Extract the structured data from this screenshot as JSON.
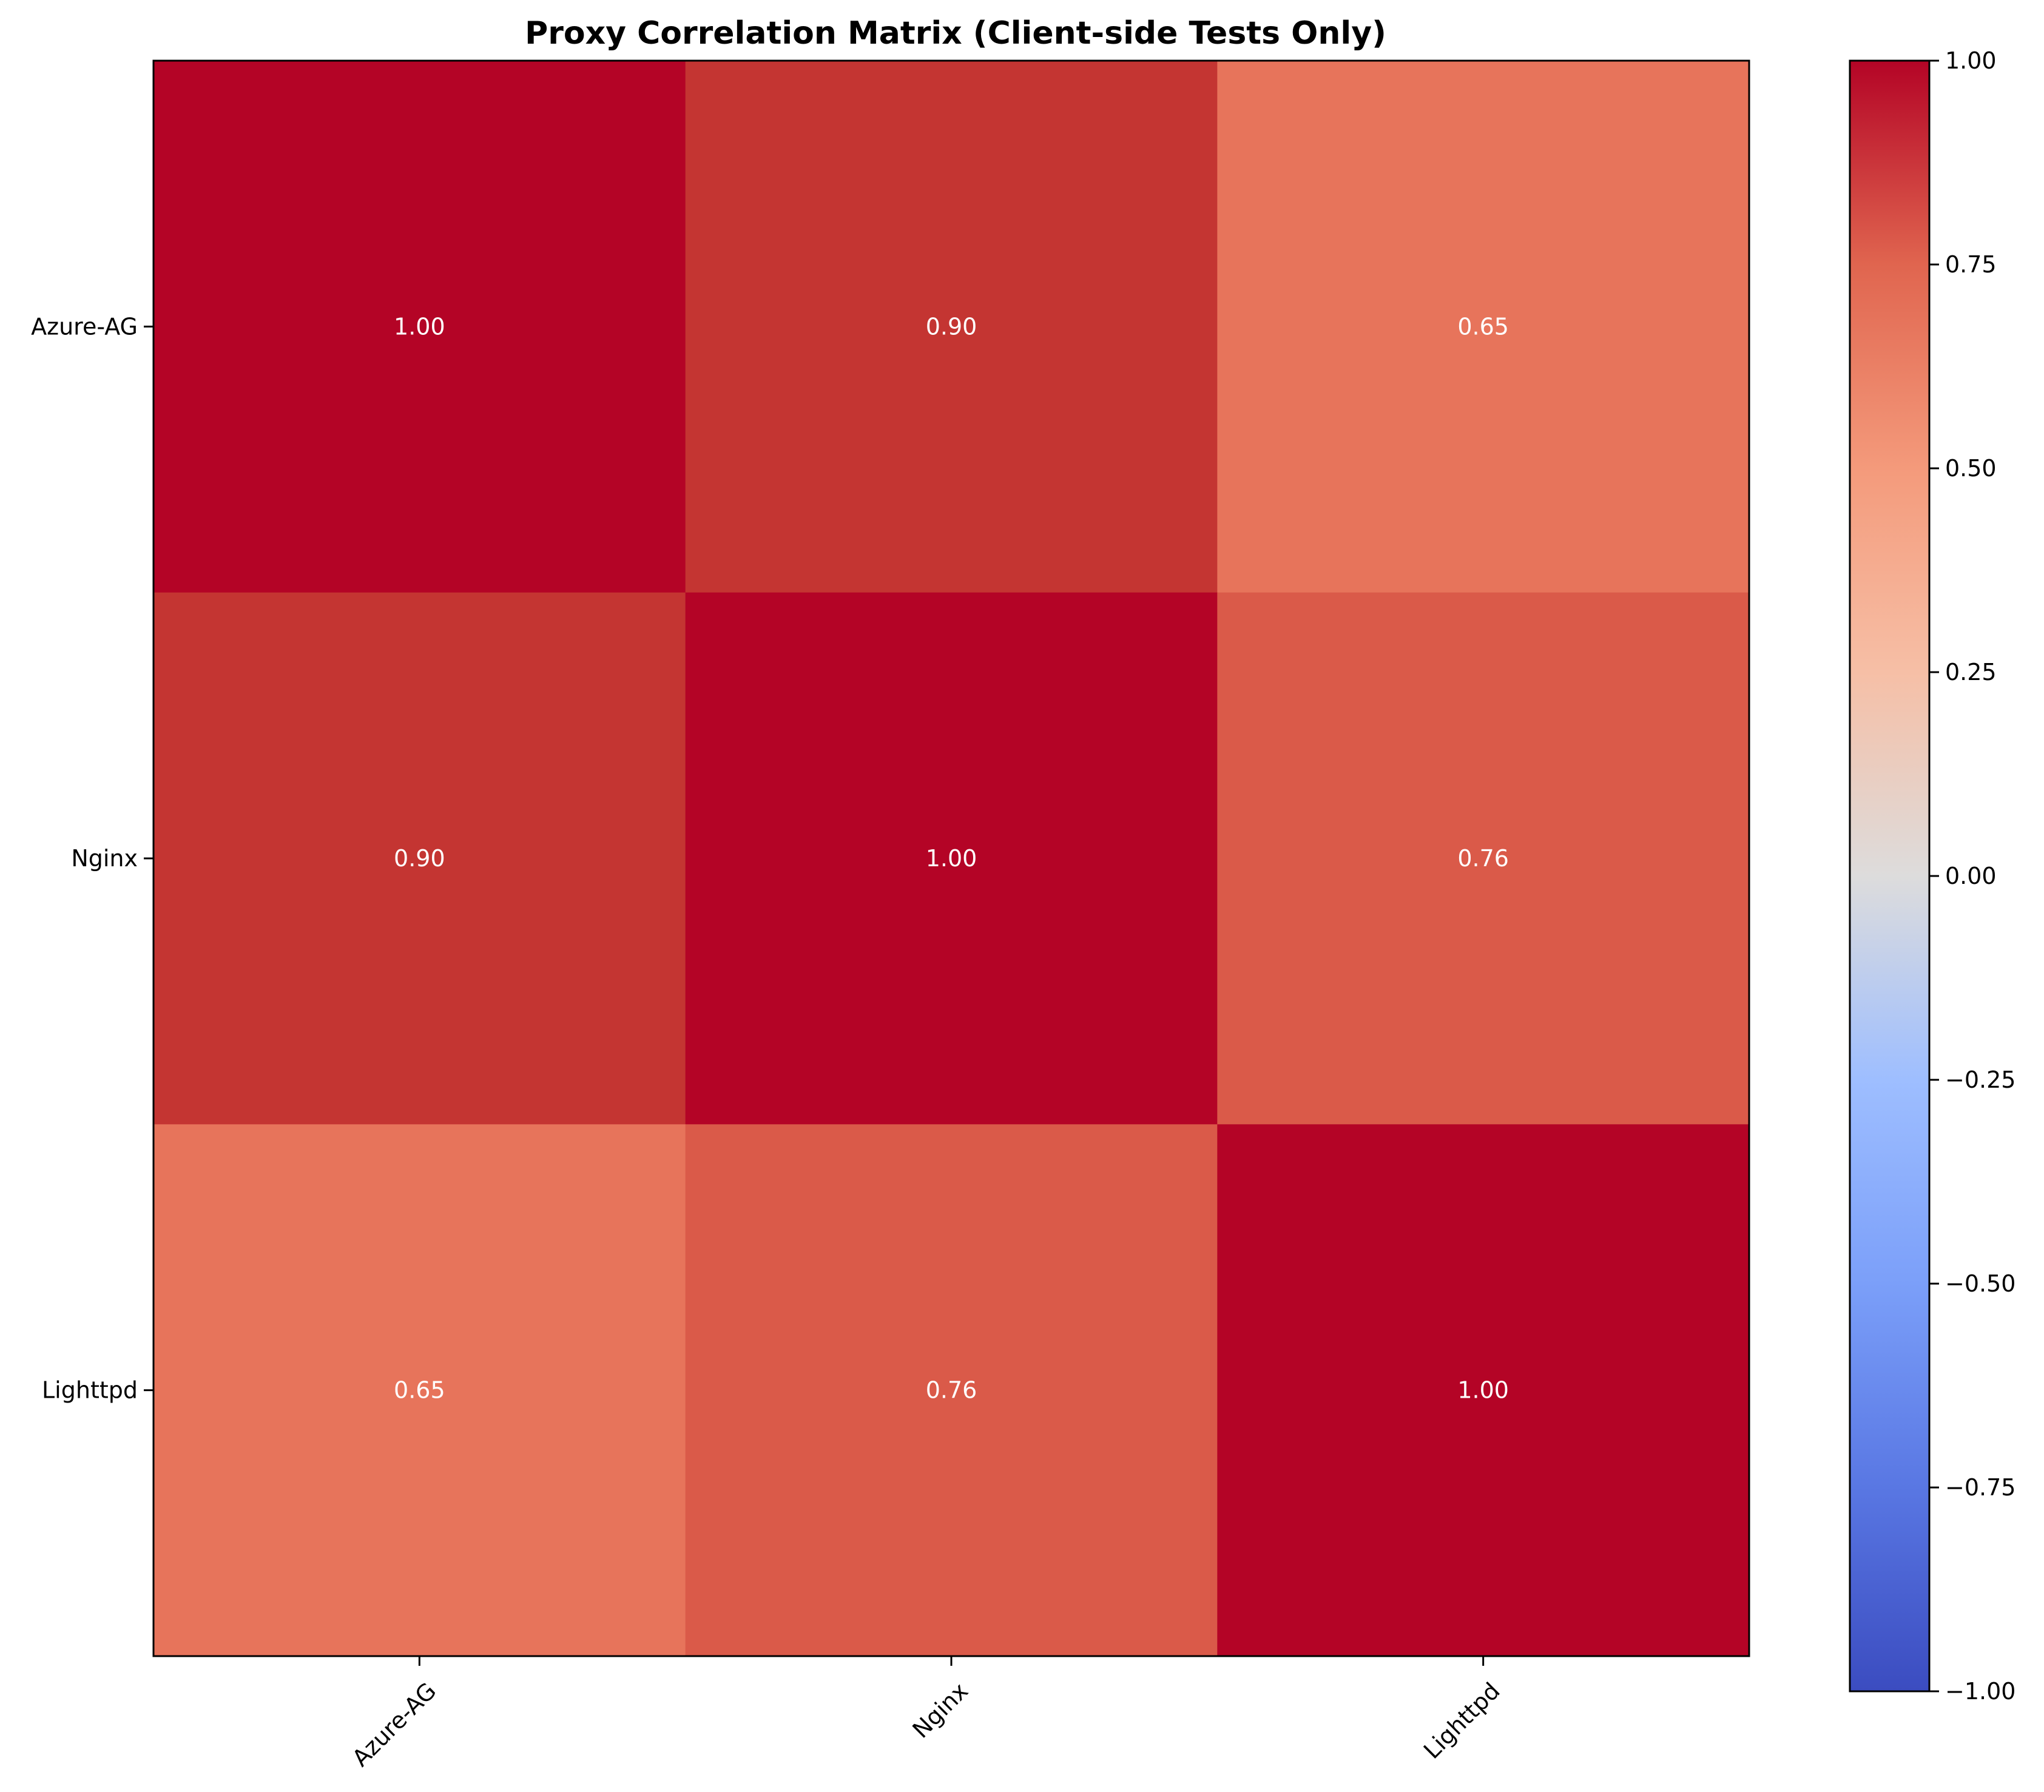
{
  "chart_data": {
    "type": "heatmap",
    "title": "Proxy Correlation Matrix (Client-side Tests Only)",
    "x_labels": [
      "Azure-AG",
      "Nginx",
      "Lighttpd"
    ],
    "y_labels": [
      "Azure-AG",
      "Nginx",
      "Lighttpd"
    ],
    "values": [
      [
        1.0,
        0.9,
        0.65
      ],
      [
        0.9,
        1.0,
        0.76
      ],
      [
        0.65,
        0.76,
        1.0
      ]
    ],
    "cell_labels": [
      [
        "1.00",
        "0.90",
        "0.65"
      ],
      [
        "0.90",
        "1.00",
        "0.76"
      ],
      [
        "0.65",
        "0.76",
        "1.00"
      ]
    ],
    "colormap": "coolwarm",
    "vmin": -1,
    "vmax": 1,
    "colorbar": {
      "ticks": [
        1.0,
        0.75,
        0.5,
        0.25,
        0.0,
        -0.25,
        -0.5,
        -0.75,
        -1.0
      ],
      "tick_labels": [
        "1.00",
        "0.75",
        "0.50",
        "0.25",
        "0.00",
        "−0.25",
        "−0.50",
        "−0.75",
        "−1.00"
      ]
    },
    "cell_colors": [
      [
        "#b40426",
        "#c43532",
        "#e7745b"
      ],
      [
        "#c43532",
        "#b40426",
        "#da5a49"
      ],
      [
        "#e7745b",
        "#da5a49",
        "#b40426"
      ]
    ],
    "annotation_color": "#ffffff"
  }
}
